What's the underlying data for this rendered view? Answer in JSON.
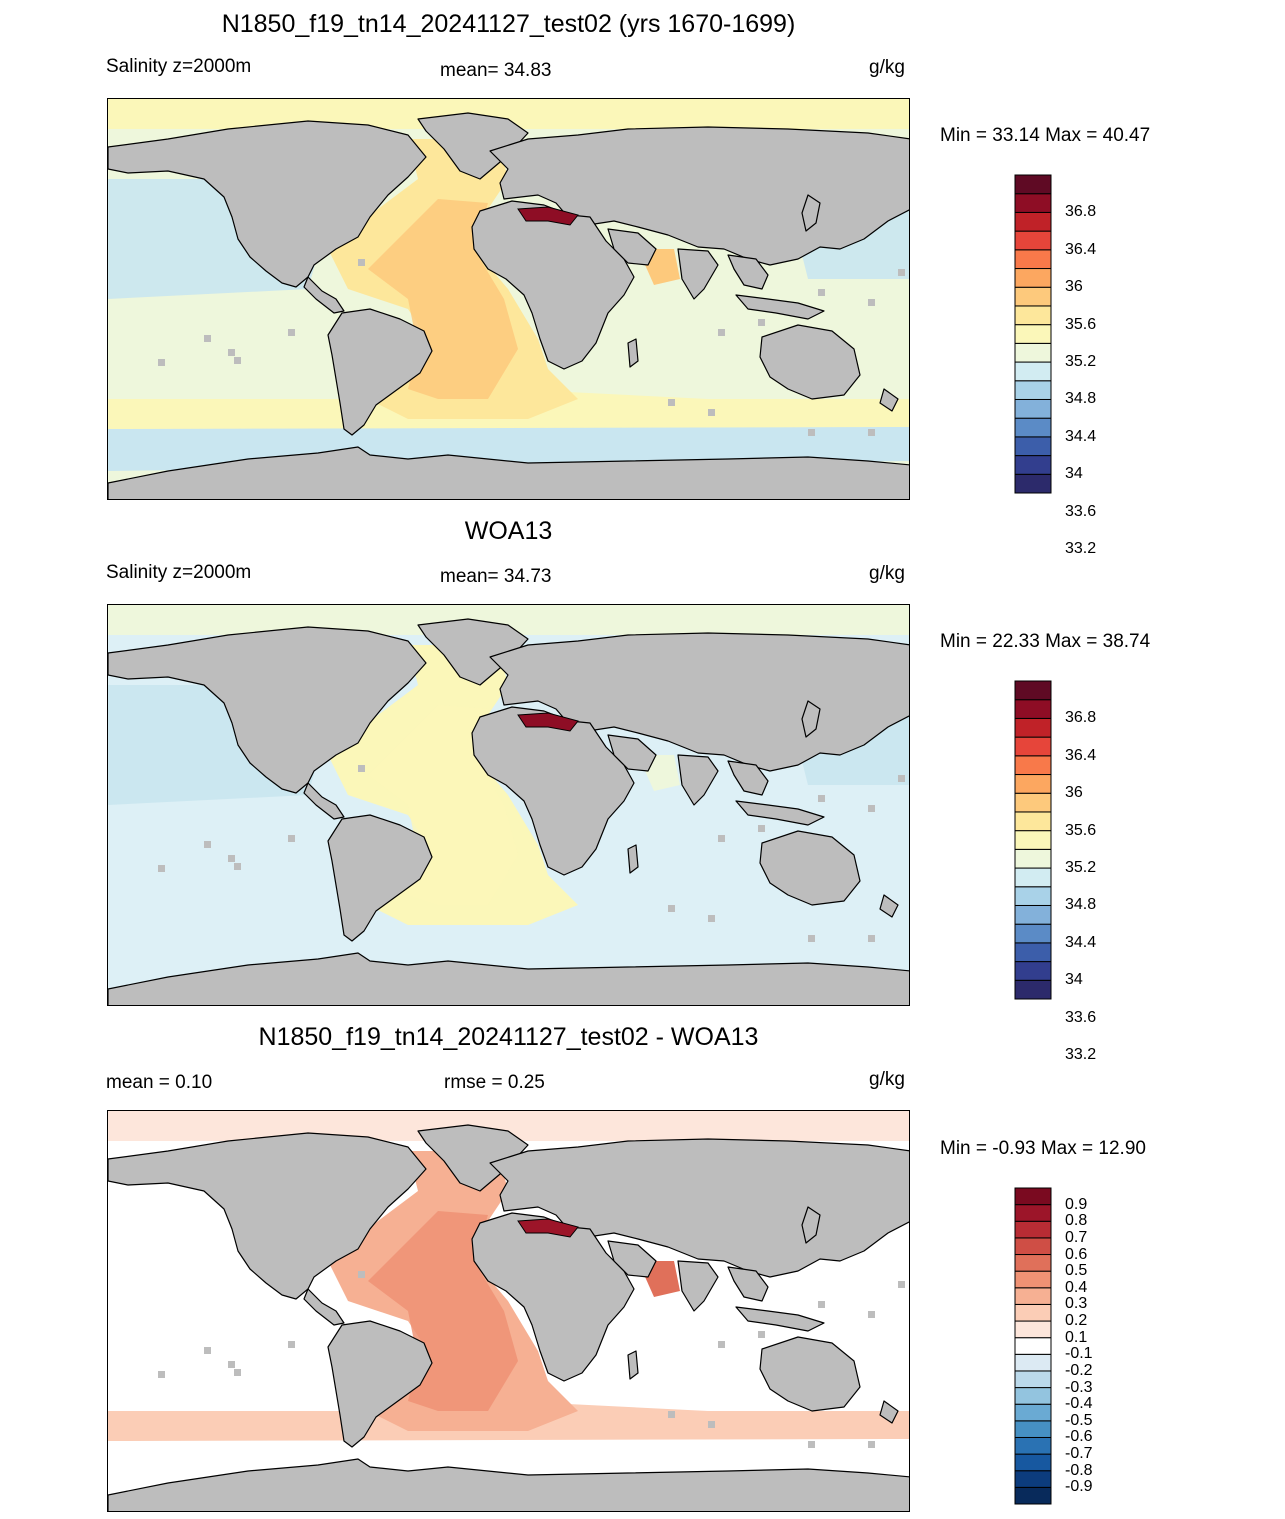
{
  "panels": [
    {
      "title": "N1850_f19_tn14_20241127_test02 (yrs 1670-1699)",
      "left_label": "Salinity z=2000m",
      "center_label": "mean=  34.83",
      "units": "g/kg",
      "minmax": "Min =  33.14 Max =  40.47",
      "colorbar": {
        "colors": [
          "#2c2a6b",
          "#323e8e",
          "#3c5eaa",
          "#5b8bc6",
          "#83b1da",
          "#a9d2e8",
          "#d2ecf2",
          "#eef7dc",
          "#fbf7b9",
          "#fde79b",
          "#fdc97c",
          "#fca760",
          "#f8794a",
          "#e6453a",
          "#c02228",
          "#8e0d25",
          "#5f0a24"
        ],
        "labels": [
          "36.8",
          "36.4",
          "36",
          "35.6",
          "35.2",
          "34.8",
          "34.4",
          "34",
          "33.6",
          "33.2"
        ]
      }
    },
    {
      "title": "WOA13",
      "left_label": "Salinity z=2000m",
      "center_label": "mean=  34.73",
      "units": "g/kg",
      "minmax": "Min =  22.33 Max =  38.74",
      "colorbar": {
        "colors": [
          "#2c2a6b",
          "#323e8e",
          "#3c5eaa",
          "#5b8bc6",
          "#83b1da",
          "#a9d2e8",
          "#d2ecf2",
          "#eef7dc",
          "#fbf7b9",
          "#fde79b",
          "#fdc97c",
          "#fca760",
          "#f8794a",
          "#e6453a",
          "#c02228",
          "#8e0d25",
          "#5f0a24"
        ],
        "labels": [
          "36.8",
          "36.4",
          "36",
          "35.6",
          "35.2",
          "34.8",
          "34.4",
          "34",
          "33.6",
          "33.2"
        ]
      }
    },
    {
      "title": "N1850_f19_tn14_20241127_test02 - WOA13",
      "left_label": "mean =   0.10",
      "center_label": "rmse =   0.25",
      "units": "g/kg",
      "minmax": "Min =  -0.93 Max =  12.90",
      "colorbar": {
        "colors": [
          "#082a5b",
          "#0c3c7d",
          "#1758a0",
          "#2a72b3",
          "#4690c3",
          "#6aaad3",
          "#93c4df",
          "#bbd9ea",
          "#dceaf3",
          "#ffffff",
          "#fde6db",
          "#fbcdb6",
          "#f6b093",
          "#ef9274",
          "#e0705a",
          "#cf4e45",
          "#b82c34",
          "#9c1529",
          "#7a0a20"
        ],
        "labels": [
          "0.9",
          "0.8",
          "0.7",
          "0.6",
          "0.5",
          "0.4",
          "0.3",
          "0.2",
          "0.1",
          "-0.1",
          "-0.2",
          "-0.3",
          "-0.4",
          "-0.5",
          "-0.6",
          "-0.7",
          "-0.8",
          "-0.9"
        ]
      }
    }
  ],
  "map": {
    "land_color": "#bdbdbd",
    "panel_fields": [
      {
        "ocean": "#eef7dc",
        "north": "#fbf7b9",
        "atlantic": "#fde79b",
        "atl_core": "#fdc97c",
        "arabian": "#fdc97c",
        "south_band": "#fbf7b9",
        "acc": "#c9e6f0",
        "pacific": "#c9e6f0",
        "med": "#8e0d25"
      },
      {
        "ocean": "#ddf0f6",
        "north": "#eef7dc",
        "atlantic": "#fbf7b9",
        "atl_core": "#fbf7b9",
        "arabian": "#eef7dc",
        "south_band": "#ddf0f6",
        "acc": "#ddf0f6",
        "pacific": "#c9e6f0",
        "med": "#8e0d25"
      },
      {
        "ocean": "#ffffff",
        "north": "#fde6db",
        "atlantic": "#f6b093",
        "atl_core": "#ef9274",
        "arabian": "#e0705a",
        "south_band": "#fbcdb6",
        "acc": "#ffffff",
        "pacific": "#ffffff",
        "med": "#9c1529"
      }
    ]
  }
}
